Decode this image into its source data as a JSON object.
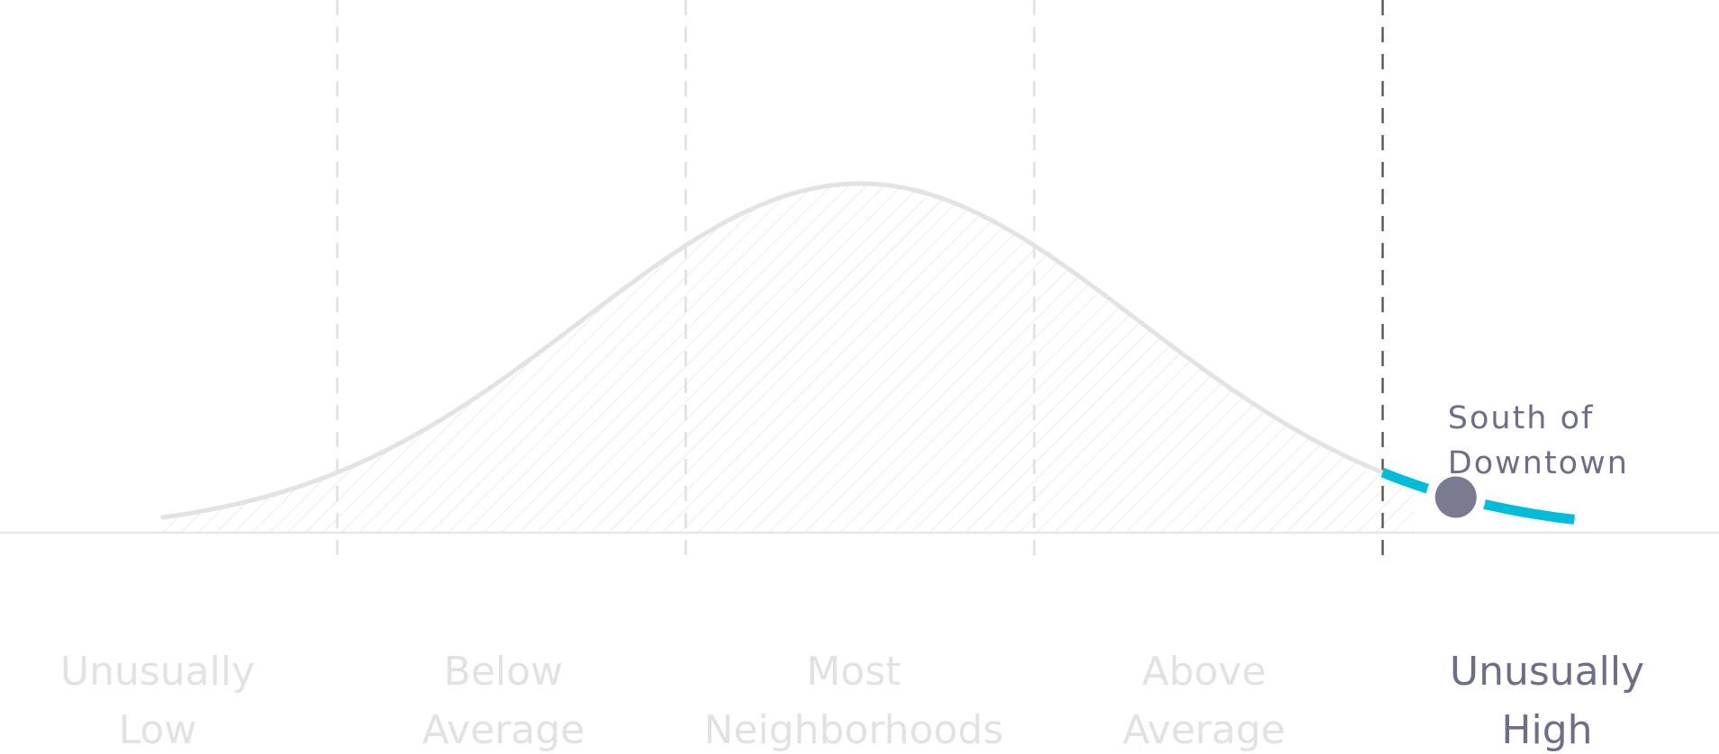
{
  "chart_data": {
    "type": "area",
    "title": "",
    "xlabel": "",
    "ylabel": "",
    "xlim": [
      -2.4,
      2.7
    ],
    "ylim": [
      0,
      1.0
    ],
    "grid": false,
    "distribution": {
      "mean": 0,
      "sd": 0.8,
      "peak": 1.0
    },
    "category_boundaries": [
      -1.5,
      -0.5,
      0.5,
      1.5
    ],
    "categories": [
      {
        "label_lines": [
          "Unusually",
          "Low"
        ],
        "highlighted": false
      },
      {
        "label_lines": [
          "Below",
          "Average"
        ],
        "highlighted": false
      },
      {
        "label_lines": [
          "Most",
          "Neighborhoods"
        ],
        "highlighted": false
      },
      {
        "label_lines": [
          "Above",
          "Average"
        ],
        "highlighted": false
      },
      {
        "label_lines": [
          "Unusually",
          "High"
        ],
        "highlighted": true
      }
    ],
    "highlight_range": [
      1.5,
      2.05
    ],
    "marker": {
      "x": 1.71,
      "label_lines": [
        "South of",
        "Downtown"
      ]
    },
    "colors": {
      "curve": "#e3e3e3",
      "hatch": "#e6e6e6",
      "baseline": "#e8e8e8",
      "boundary": "#dedede",
      "active_boundary": "#555555",
      "highlight": "#00bcd8",
      "marker": "#7a7a91",
      "label_muted": "#e2e2e2",
      "label_active": "#6e6e86"
    }
  }
}
